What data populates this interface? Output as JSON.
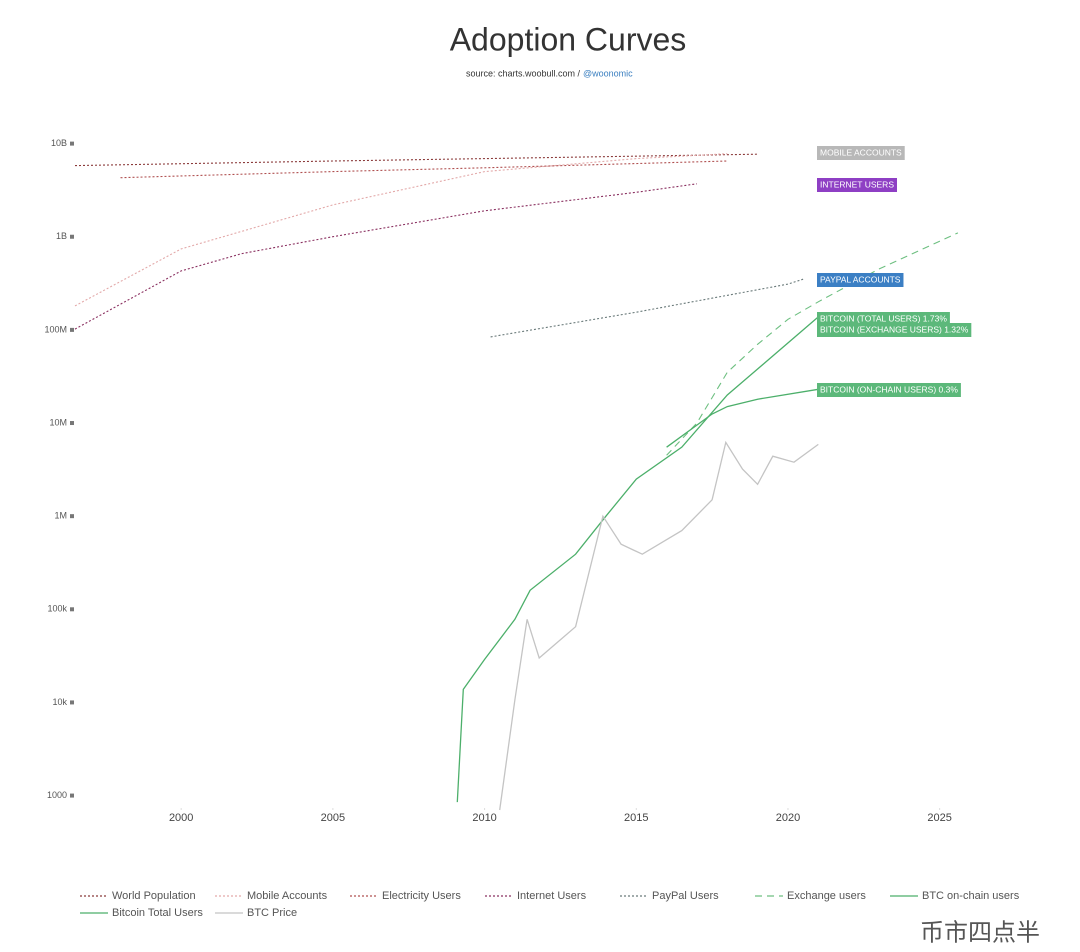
{
  "chart_data": {
    "type": "line",
    "title": "Adoption Curves",
    "subtitle": "source: charts.woobull.com /",
    "subtitle_link": "@woonomic",
    "watermark": "币市四点半",
    "log_y": true,
    "xlim": [
      1996.5,
      2026
    ],
    "xticks": [
      2000,
      2005,
      2010,
      2015,
      2020,
      2025
    ],
    "ylim": [
      700,
      14000000000
    ],
    "yticks": [
      {
        "value": 1000,
        "label": "1000"
      },
      {
        "value": 10000,
        "label": "10k"
      },
      {
        "value": 100000,
        "label": "100k"
      },
      {
        "value": 1000000,
        "label": "1M"
      },
      {
        "value": 10000000,
        "label": "10M"
      },
      {
        "value": 100000000,
        "label": "100M"
      },
      {
        "value": 1000000000,
        "label": "1B"
      },
      {
        "value": 10000000000,
        "label": "10B"
      }
    ],
    "series": [
      {
        "name": "World Population",
        "color": "#8b3a3a",
        "dash": "dotted",
        "x": [
          1996.5,
          2005,
          2010,
          2019
        ],
        "values": [
          5800000000,
          6500000000,
          6900000000,
          7700000000
        ]
      },
      {
        "name": "Mobile Accounts",
        "color": "#e3a9a9",
        "dash": "dotted",
        "x": [
          1996.5,
          2000,
          2005,
          2010,
          2015,
          2018
        ],
        "values": [
          181000000,
          740000000,
          2200000000,
          5000000000,
          6900000000,
          7800000000
        ]
      },
      {
        "name": "Electricity Users",
        "color": "#b05050",
        "dash": "dotted",
        "x": [
          1998,
          2005,
          2010,
          2018
        ],
        "values": [
          4300000000,
          5000000000,
          5500000000,
          6500000000
        ]
      },
      {
        "name": "Internet Users",
        "color": "#8a3060",
        "dash": "dotted",
        "x": [
          1996.5,
          2000,
          2002,
          2005,
          2010,
          2015,
          2017
        ],
        "values": [
          102000000,
          430000000,
          660000000,
          1000000000,
          1900000000,
          3000000000,
          3700000000
        ]
      },
      {
        "name": "PayPal Users",
        "color": "#6a7a7a",
        "dash": "dotted",
        "x": [
          2010.2,
          2015,
          2020,
          2020.5
        ],
        "values": [
          84000000,
          155000000,
          310000000,
          350000000
        ]
      },
      {
        "name": "Exchange users",
        "color": "#6dbf80",
        "dash": "dashed",
        "x": [
          2016,
          2017,
          2018,
          2019,
          2020,
          2021,
          2023,
          2025.6
        ],
        "values": [
          4500000,
          10000000,
          35000000,
          70000000,
          130000000,
          200000000,
          450000000,
          1100000000
        ]
      },
      {
        "name": "BTC on-chain users",
        "color": "#4caf6a",
        "dash": "solid",
        "x": [
          2016,
          2017.5,
          2018,
          2019,
          2021
        ],
        "values": [
          5500000,
          12500000,
          15000000,
          18000000,
          23000000
        ]
      },
      {
        "name": "Bitcoin Total Users",
        "color": "#4caf6a",
        "dash": "solid",
        "x": [
          2009.1,
          2009.3,
          2010,
          2011,
          2011.5,
          2013,
          2014,
          2015,
          2016.5,
          2018,
          2021
        ],
        "values": [
          850,
          13800,
          29000,
          78000,
          160000,
          390000,
          1000000,
          2500000,
          5500000,
          20000000,
          138000000
        ]
      },
      {
        "name": "BTC Price",
        "color": "#c4c4c4",
        "dash": "solid",
        "x": [
          2010.5,
          2011,
          2011.4,
          2011.8,
          2013,
          2013.9,
          2014.5,
          2015.2,
          2016.5,
          2017.5,
          2017.95,
          2018.5,
          2019,
          2019.5,
          2020.2,
          2021
        ],
        "values": [
          700,
          10700,
          78000,
          30000,
          65000,
          1000000,
          500000,
          390000,
          700000,
          1500000,
          6200000,
          3200000,
          2200000,
          4400000,
          3800000,
          5900000
        ]
      }
    ],
    "annotations": [
      {
        "text": "MOBILE ACCOUNTS",
        "color": "#b8b8b8"
      },
      {
        "text": "INTERNET USERS",
        "color": "#8e3fc4"
      },
      {
        "text": "PAYPAL ACCOUNTS",
        "color": "#3b7fc4"
      },
      {
        "text": "BITCOIN (TOTAL USERS) 1.73%",
        "color": "#5cb87a"
      },
      {
        "text": "BITCOIN (EXCHANGE USERS) 1.32%",
        "color": "#5cb87a"
      },
      {
        "text": "BITCOIN (ON-CHAIN USERS) 0.3%",
        "color": "#5cb87a"
      }
    ]
  }
}
